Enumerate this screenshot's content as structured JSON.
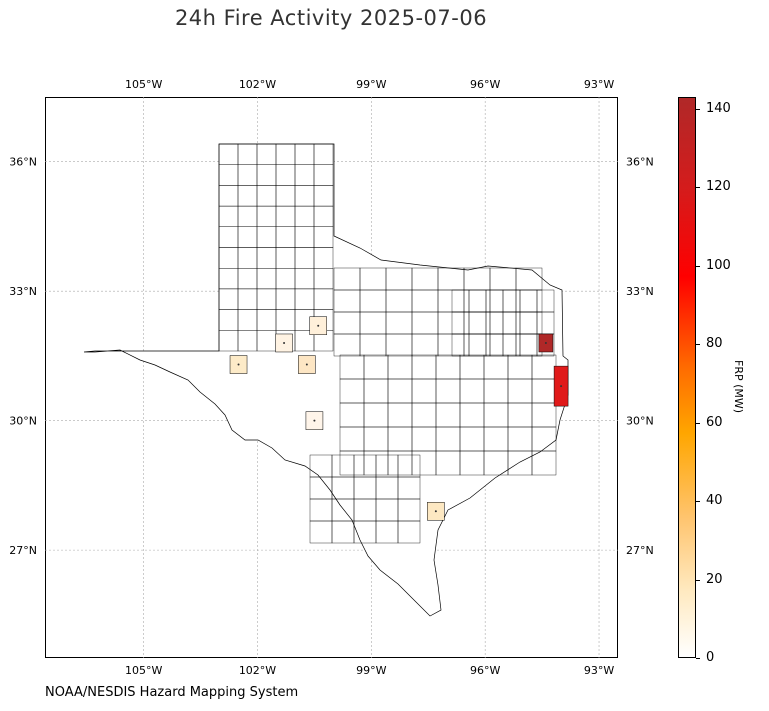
{
  "title": "24h Fire Activity 2025-07-06",
  "credit": "NOAA/NESDIS Hazard Mapping System",
  "map": {
    "lon_ticks": [
      "105°W",
      "102°W",
      "99°W",
      "96°W",
      "93°W"
    ],
    "lat_ticks": [
      "36°N",
      "33°N",
      "30°N",
      "27°N"
    ],
    "lon_values": [
      -105,
      -102,
      -99,
      -96,
      -93
    ],
    "lat_values": [
      36,
      33,
      30,
      27
    ],
    "extent": {
      "lon_min": -107.6,
      "lon_max": -92.5,
      "lat_min": 24.5,
      "lat_max": 37.5
    },
    "region": "Texas counties",
    "highlighted_counties": [
      {
        "lon": -94.4,
        "lat": 31.8,
        "frp": 142,
        "color": "#b02828"
      },
      {
        "lon": -94.0,
        "lat": 30.8,
        "frp": 112,
        "color": "#e01a1a"
      },
      {
        "lon": -97.3,
        "lat": 27.9,
        "frp": 12,
        "color": "#fde8c2"
      },
      {
        "lon": -102.5,
        "lat": 31.3,
        "frp": 10,
        "color": "#fdebc8"
      },
      {
        "lon": -101.3,
        "lat": 31.8,
        "frp": 4,
        "color": "#fff3e3"
      },
      {
        "lon": -100.4,
        "lat": 32.2,
        "frp": 6,
        "color": "#fff0da"
      },
      {
        "lon": -100.7,
        "lat": 31.3,
        "frp": 8,
        "color": "#fde6c4"
      },
      {
        "lon": -100.5,
        "lat": 30.0,
        "frp": 3,
        "color": "#fff5ea"
      }
    ]
  },
  "colorbar": {
    "label": "FRP (MW)",
    "ticks": [
      "0",
      "20",
      "40",
      "60",
      "80",
      "100",
      "120",
      "140"
    ],
    "min": 0,
    "max": 143
  }
}
